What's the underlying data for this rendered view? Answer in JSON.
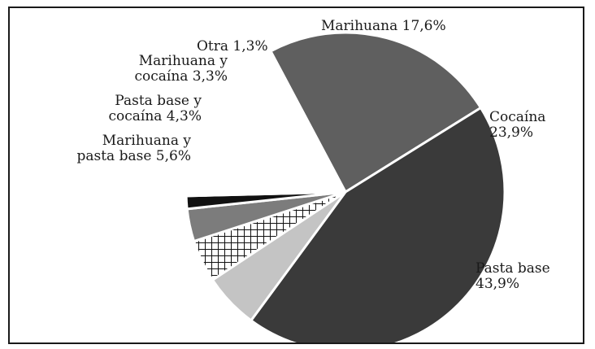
{
  "chart_data": {
    "type": "pie",
    "start_angle_deg": -28,
    "direction": "clockwise",
    "slices": [
      {
        "label": "Cocaína",
        "value_label": "23,9%",
        "value": 23.9,
        "color": "#5f5f5f",
        "pattern": "solid"
      },
      {
        "label": "Pasta base",
        "value_label": "43,9%",
        "value": 43.9,
        "color": "#3a3a3a",
        "pattern": "solid"
      },
      {
        "label": "Marihuana y pasta base",
        "value_label": "5,6%",
        "value": 5.6,
        "color": "#c4c4c4",
        "pattern": "solid"
      },
      {
        "label": "Pasta base y cocaína",
        "value_label": "4,3%",
        "value": 4.3,
        "color": "#ffffff",
        "pattern": "crosshatch"
      },
      {
        "label": "Marihuana y cocaína",
        "value_label": "3,3%",
        "value": 3.3,
        "color": "#7c7c7c",
        "pattern": "solid"
      },
      {
        "label": "Otra",
        "value_label": "1,3%",
        "value": 1.3,
        "color": "#111111",
        "pattern": "solid"
      },
      {
        "label": "Marihuana",
        "value_label": "17,6%",
        "value": 17.6,
        "color": "#ffffff",
        "pattern": "solid"
      }
    ]
  }
}
